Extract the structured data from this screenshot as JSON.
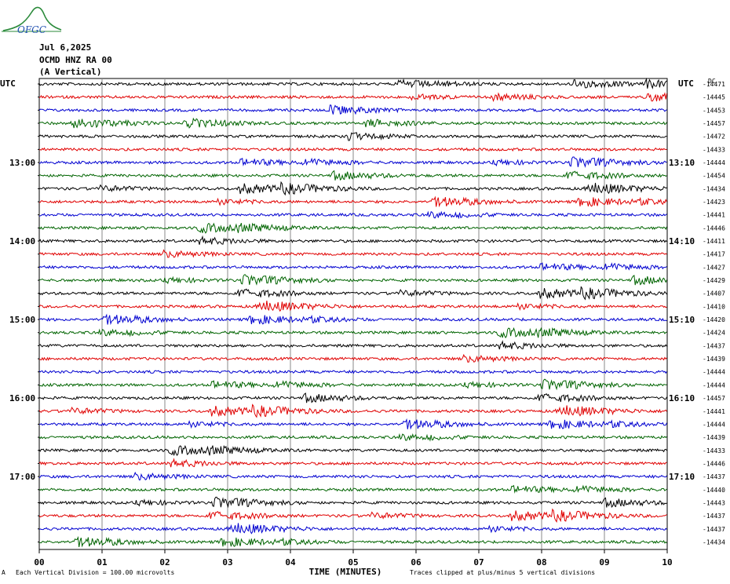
{
  "header": {
    "date": "Jul 6,2025",
    "station": "OCMD HNZ RA 00",
    "component": "(A Vertical)",
    "logo_text": "OFGC"
  },
  "footer": {
    "scale_note": "Each Vertical Division =  100.00 microvolts",
    "clip_note": "Traces clipped at plus/minus 5 vertical divisions",
    "marker": "A"
  },
  "chart_data": {
    "type": "line",
    "title": "",
    "xlabel": "TIME (MINUTES)",
    "ylabel": "",
    "x_ticks": [
      "00",
      "01",
      "02",
      "03",
      "04",
      "05",
      "06",
      "07",
      "08",
      "09",
      "10"
    ],
    "xlim": [
      0,
      10
    ],
    "left_axis_title": "UTC",
    "right_axis_title": "UTC",
    "right_top_label": "DC",
    "left_time_labels": [
      {
        "row": 6,
        "label": "13:00"
      },
      {
        "row": 12,
        "label": "14:00"
      },
      {
        "row": 18,
        "label": "15:00"
      },
      {
        "row": 24,
        "label": "16:00"
      },
      {
        "row": 30,
        "label": "17:00"
      }
    ],
    "right_time_labels": [
      {
        "row": 6,
        "label": "13:10"
      },
      {
        "row": 12,
        "label": "14:10"
      },
      {
        "row": 18,
        "label": "15:10"
      },
      {
        "row": 24,
        "label": "16:10"
      },
      {
        "row": 30,
        "label": "17:10"
      }
    ],
    "trace_colors": [
      "#000000",
      "#e00000",
      "#0000d0",
      "#006400"
    ],
    "trace_offsets": [
      -14471,
      -14445,
      -14453,
      -14457,
      -14472,
      -14433,
      -14444,
      -14454,
      -14434,
      -14423,
      -14441,
      -14446,
      -14411,
      -14417,
      -14427,
      -14429,
      -14407,
      -14410,
      -14420,
      -14424,
      -14437,
      -14439,
      -14444,
      -14444,
      -14457,
      -14441,
      -14444,
      -14439,
      -14433,
      -14446,
      -14437,
      -14440,
      -14443,
      -14437,
      -14437,
      -14434
    ],
    "minutes_per_trace": 10,
    "grid": "vertical lines at each minute"
  }
}
